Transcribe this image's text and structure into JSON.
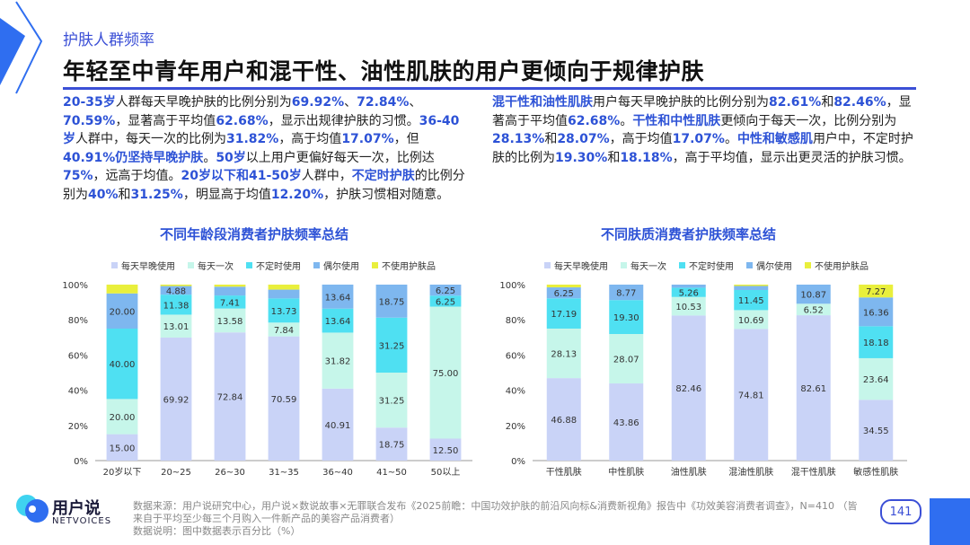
{
  "header": {
    "section": "护肤人群频率",
    "title": "年轻至中青年用户和混干性、油性肌肤的用户更倾向于规律护肤"
  },
  "paragraphs": {
    "left": [
      {
        "t": "20-35岁",
        "h": true
      },
      {
        "t": "人群每天早晚护肤的比例分别为",
        "h": false
      },
      {
        "t": "69.92%",
        "h": true
      },
      {
        "t": "、",
        "h": false
      },
      {
        "t": "72.84%",
        "h": true
      },
      {
        "t": "、",
        "h": false
      },
      {
        "t": "70.59%",
        "h": true
      },
      {
        "t": "，显著高于平均值",
        "h": false
      },
      {
        "t": "62.68%",
        "h": true
      },
      {
        "t": "，显示出规律护肤的习惯。",
        "h": false
      },
      {
        "t": "36-40岁",
        "h": true
      },
      {
        "t": "人群中，每天一次的比例为",
        "h": false
      },
      {
        "t": "31.82%",
        "h": true
      },
      {
        "t": "，高于均值",
        "h": false
      },
      {
        "t": "17.07%",
        "h": true
      },
      {
        "t": "，但",
        "h": false
      },
      {
        "t": "40.91%仍坚持早晚护肤",
        "h": true
      },
      {
        "t": "。",
        "h": false
      },
      {
        "t": "50岁",
        "h": true
      },
      {
        "t": "以上用户更偏好每天一次，比例达",
        "h": false
      },
      {
        "t": "75%",
        "h": true
      },
      {
        "t": "，远高于均值。",
        "h": false
      },
      {
        "t": "20岁以下和41-50岁",
        "h": true
      },
      {
        "t": "人群中，",
        "h": false
      },
      {
        "t": "不定时护肤",
        "h": true
      },
      {
        "t": "的比例分别为",
        "h": false
      },
      {
        "t": "40%",
        "h": true
      },
      {
        "t": "和",
        "h": false
      },
      {
        "t": "31.25%",
        "h": true
      },
      {
        "t": "，明显高于均值",
        "h": false
      },
      {
        "t": "12.20%",
        "h": true
      },
      {
        "t": "，护肤习惯相对随意。",
        "h": false
      }
    ],
    "right": [
      {
        "t": "混干性和油性肌肤",
        "h": true
      },
      {
        "t": "用户每天早晚护肤的比例分别为",
        "h": false
      },
      {
        "t": "82.61%",
        "h": true
      },
      {
        "t": "和",
        "h": false
      },
      {
        "t": "82.46%",
        "h": true
      },
      {
        "t": "，显著高于平均值",
        "h": false
      },
      {
        "t": "62.68%",
        "h": true
      },
      {
        "t": "。",
        "h": false
      },
      {
        "t": "干性和中性肌肤",
        "h": true
      },
      {
        "t": "更倾向于每天一次，比例分别为",
        "h": false
      },
      {
        "t": "28.13%",
        "h": true
      },
      {
        "t": "和",
        "h": false
      },
      {
        "t": "28.07%",
        "h": true
      },
      {
        "t": "，高于均值",
        "h": false
      },
      {
        "t": "17.07%",
        "h": true
      },
      {
        "t": "。",
        "h": false
      },
      {
        "t": "中性和敏感肌",
        "h": true
      },
      {
        "t": "用户中，不定时护肤的比例为",
        "h": false
      },
      {
        "t": "19.30%",
        "h": true
      },
      {
        "t": "和",
        "h": false
      },
      {
        "t": "18.18%",
        "h": true
      },
      {
        "t": "，高于平均值，显示出更灵活的护肤习惯。",
        "h": false
      }
    ]
  },
  "legend_items": [
    "每天早晚使用",
    "每天一次",
    "不定时使用",
    "偶尔使用",
    "不使用护肤品"
  ],
  "colors": [
    "#c9d3f7",
    "#c6f6ea",
    "#4fe0f2",
    "#7eb7ef",
    "#e9ef3c"
  ],
  "chart_data": [
    {
      "type": "bar",
      "stacked": true,
      "title": "不同年龄段消费者护肤频率总结",
      "categories": [
        "20岁以下",
        "20~25",
        "26~30",
        "31~35",
        "36~40",
        "41~50",
        "50以上"
      ],
      "ylim": [
        0,
        100
      ],
      "yticks": [
        "0%",
        "20%",
        "40%",
        "60%",
        "80%",
        "100%"
      ],
      "series": [
        {
          "name": "每天早晚使用",
          "values": [
            15.0,
            69.92,
            72.84,
            70.59,
            40.91,
            18.75,
            12.5
          ]
        },
        {
          "name": "每天一次",
          "values": [
            20.0,
            13.01,
            13.58,
            7.84,
            31.82,
            31.25,
            75.0
          ]
        },
        {
          "name": "不定时使用",
          "values": [
            40.0,
            11.38,
            7.41,
            13.73,
            13.64,
            31.25,
            6.25
          ]
        },
        {
          "name": "偶尔使用",
          "values": [
            20.0,
            4.88,
            5.0,
            5.0,
            13.64,
            18.75,
            6.25
          ]
        },
        {
          "name": "不使用护肤品",
          "values": [
            5.0,
            0.81,
            1.17,
            2.84,
            0,
            0,
            0
          ]
        }
      ],
      "labels": [
        [
          "15.00",
          "20.00",
          "40.00",
          "20.00",
          ""
        ],
        [
          "69.92",
          "13.01",
          "11.38",
          "4.88",
          ""
        ],
        [
          "72.84",
          "13.58",
          "7.41",
          "",
          ""
        ],
        [
          "70.59",
          "7.84",
          "13.73",
          "",
          ""
        ],
        [
          "40.91",
          "31.82",
          "13.64",
          "13.64",
          ""
        ],
        [
          "18.75",
          "31.25",
          "31.25",
          "18.75",
          ""
        ],
        [
          "12.50",
          "75.00",
          "6.25",
          "6.25",
          ""
        ]
      ]
    },
    {
      "type": "bar",
      "stacked": true,
      "title": "不同肤质消费者护肤频率总结",
      "categories": [
        "干性肌肤",
        "中性肌肤",
        "油性肌肤",
        "混油性肌肤",
        "混干性肌肤",
        "敏感性肌肤"
      ],
      "ylim": [
        0,
        100
      ],
      "yticks": [
        "0%",
        "20%",
        "40%",
        "60%",
        "80%",
        "100%"
      ],
      "series": [
        {
          "name": "每天早晚使用",
          "values": [
            46.88,
            43.86,
            82.46,
            74.81,
            82.61,
            34.55
          ]
        },
        {
          "name": "每天一次",
          "values": [
            28.13,
            28.07,
            10.53,
            10.69,
            6.52,
            23.64
          ]
        },
        {
          "name": "不定时使用",
          "values": [
            17.19,
            19.3,
            5.26,
            11.45,
            0,
            18.18
          ]
        },
        {
          "name": "偶尔使用",
          "values": [
            6.25,
            8.77,
            1.75,
            2.29,
            10.87,
            16.36
          ]
        },
        {
          "name": "不使用护肤品",
          "values": [
            1.55,
            0,
            0,
            0.76,
            0,
            7.27
          ]
        }
      ],
      "labels": [
        [
          "46.88",
          "28.13",
          "17.19",
          "6.25",
          ""
        ],
        [
          "43.86",
          "28.07",
          "19.30",
          "8.77",
          ""
        ],
        [
          "82.46",
          "10.53",
          "5.26",
          "",
          ""
        ],
        [
          "74.81",
          "10.69",
          "11.45",
          "",
          ""
        ],
        [
          "82.61",
          "6.52",
          "",
          "10.87",
          ""
        ],
        [
          "34.55",
          "23.64",
          "18.18",
          "16.36",
          "7.27"
        ]
      ]
    }
  ],
  "logo": {
    "name": "用户说",
    "sub": "NETVOICES"
  },
  "footer": {
    "line1": "数据来源：用户说研究中心，用户说×数说故事×无罪联合发布《2025前瞻：中国功效护肤的前沿风向标&消费新视角》报告中《功效美容消费者调查》，N=410 （皆来自于平均至少每三个月购入一件新产品的美容产品消费者）",
    "line2": "数据说明：图中数据表示百分比（%）"
  },
  "page_number": "141"
}
